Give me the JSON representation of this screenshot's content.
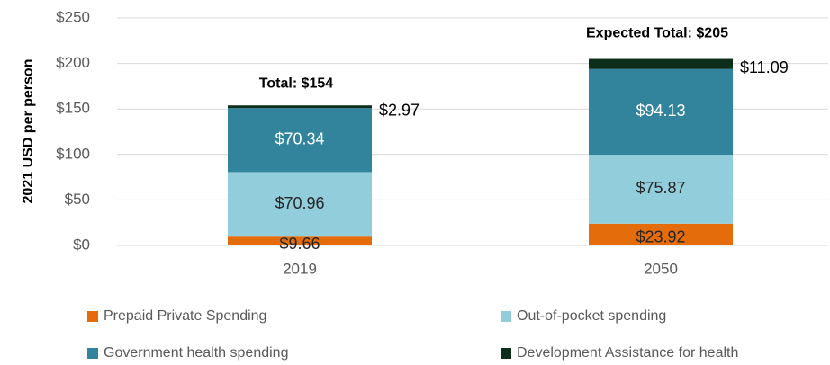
{
  "chart_data": {
    "type": "stacked_bar",
    "y_axis_label": "2021 USD per person",
    "categories": [
      "2019",
      "2050"
    ],
    "series": [
      {
        "name": "Prepaid Private Spending",
        "color": "#e46c0a",
        "values": [
          9.66,
          23.92
        ],
        "value_labels": [
          "$9.66",
          "$23.92"
        ]
      },
      {
        "name": "Out-of-pocket spending",
        "color": "#92cddc",
        "values": [
          70.96,
          75.87
        ],
        "value_labels": [
          "$70.96",
          "$75.87"
        ]
      },
      {
        "name": "Government health spending",
        "color": "#31849b",
        "values": [
          70.34,
          94.13
        ],
        "value_labels": [
          "$70.34",
          "$94.13"
        ]
      },
      {
        "name": "Development Assistance for health",
        "color": "#0d2e1a",
        "values": [
          2.97,
          11.09
        ],
        "value_labels": [
          "$2.97",
          "$11.09"
        ]
      }
    ],
    "annotations": [
      "Total: $154",
      "Expected Total: $205"
    ],
    "ylim": [
      0,
      250
    ],
    "yticks": [
      {
        "value": 0,
        "label": "$0"
      },
      {
        "value": 50,
        "label": "$50"
      },
      {
        "value": 100,
        "label": "$100"
      },
      {
        "value": 150,
        "label": "$150"
      },
      {
        "value": 200,
        "label": "$200"
      },
      {
        "value": 250,
        "label": "$250"
      }
    ],
    "grid": true
  }
}
